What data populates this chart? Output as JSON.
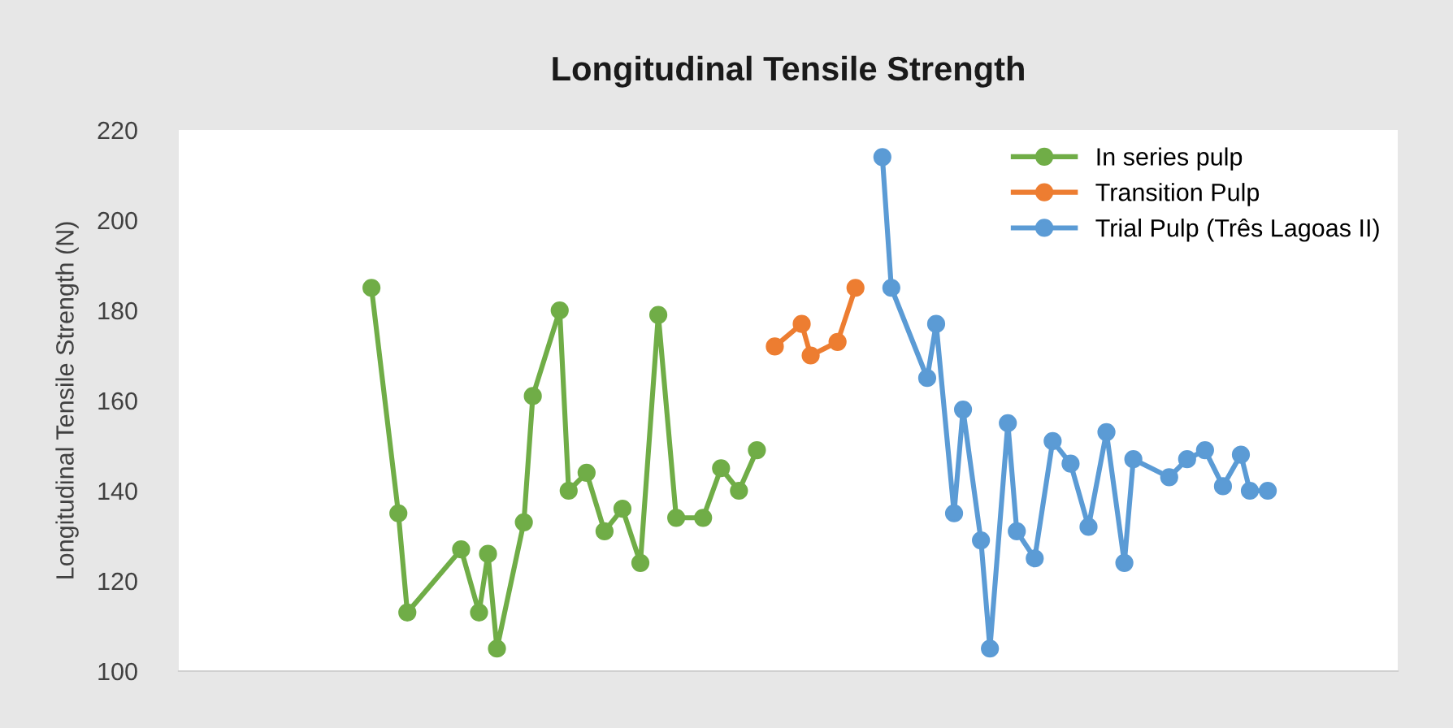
{
  "chart_data": {
    "type": "line",
    "title": "Longitudinal Tensile Strength",
    "ylabel": "Longitudinal Tensile Strength (N)",
    "categories": [
      null,
      null,
      null,
      null,
      null,
      null,
      null,
      null,
      null,
      null,
      null,
      null,
      null,
      null,
      null,
      null,
      null,
      null,
      null,
      null,
      null,
      null,
      null,
      null,
      null,
      null,
      null,
      null,
      null,
      null,
      null,
      null,
      null,
      null,
      null,
      null,
      null,
      null,
      null,
      null,
      null,
      null,
      null,
      null,
      null,
      null,
      null,
      null,
      null,
      null,
      null,
      null,
      null,
      null,
      null,
      null,
      null,
      null,
      null,
      null,
      null,
      null,
      null,
      null,
      null,
      null,
      null,
      null,
      null,
      null,
      null,
      null,
      null,
      null,
      null,
      null,
      null,
      null,
      null,
      null,
      null,
      null,
      null,
      null,
      null,
      null,
      null,
      null,
      null,
      null,
      null,
      null,
      null,
      null,
      null,
      null,
      null,
      null,
      null,
      null,
      null,
      null,
      null,
      null,
      null,
      null,
      null,
      null,
      null,
      null,
      null,
      null,
      null,
      null,
      null,
      null,
      null,
      null,
      null,
      null,
      null,
      null,
      null,
      null,
      null,
      null,
      null,
      null,
      null,
      null,
      null,
      null,
      null,
      null,
      null,
      null
    ],
    "series": [
      {
        "name": "In series pulp",
        "color": "#70ad47",
        "values": [
          null,
          null,
          null,
          null,
          null,
          null,
          null,
          null,
          null,
          null,
          null,
          null,
          null,
          null,
          null,
          null,
          null,
          null,
          null,
          null,
          null,
          185,
          null,
          null,
          135,
          113,
          null,
          null,
          null,
          null,
          null,
          127,
          null,
          113,
          126,
          105,
          null,
          null,
          133,
          161,
          null,
          null,
          180,
          140,
          null,
          144,
          null,
          131,
          null,
          136,
          null,
          124,
          null,
          179,
          null,
          134,
          null,
          null,
          134,
          null,
          145,
          null,
          140,
          null,
          149,
          null,
          null,
          null,
          null,
          null,
          null,
          null,
          null,
          null,
          null,
          null,
          null,
          null,
          null,
          null,
          null,
          null,
          null,
          null,
          null,
          null,
          null,
          null,
          null,
          null,
          null,
          null,
          null,
          null,
          null,
          null,
          null,
          null,
          null,
          null,
          null,
          null,
          null,
          null,
          null,
          null,
          null,
          null,
          null,
          null,
          null,
          null,
          null,
          null,
          null,
          null,
          null,
          null,
          null,
          null,
          null,
          null,
          null,
          null,
          null,
          null,
          null,
          null,
          null,
          null,
          null,
          null,
          null,
          null,
          null,
          null
        ]
      },
      {
        "name": "Transition Pulp",
        "color": "#ed7d31",
        "values": [
          null,
          null,
          null,
          null,
          null,
          null,
          null,
          null,
          null,
          null,
          null,
          null,
          null,
          null,
          null,
          null,
          null,
          null,
          null,
          null,
          null,
          null,
          null,
          null,
          null,
          null,
          null,
          null,
          null,
          null,
          null,
          null,
          null,
          null,
          null,
          null,
          null,
          null,
          null,
          null,
          null,
          null,
          null,
          null,
          null,
          null,
          null,
          null,
          null,
          null,
          null,
          null,
          null,
          null,
          null,
          null,
          null,
          null,
          null,
          null,
          null,
          null,
          null,
          null,
          null,
          null,
          172,
          null,
          null,
          177,
          170,
          null,
          null,
          173,
          null,
          185,
          null,
          null,
          null,
          null,
          null,
          null,
          null,
          null,
          null,
          null,
          null,
          null,
          null,
          null,
          null,
          null,
          null,
          null,
          null,
          null,
          null,
          null,
          null,
          null,
          null,
          null,
          null,
          null,
          null,
          null,
          null,
          null,
          null,
          null,
          null,
          null,
          null,
          null,
          null,
          null,
          null,
          null,
          null,
          null,
          null,
          null,
          null,
          null,
          null,
          null,
          null,
          null,
          null,
          null,
          null,
          null,
          null,
          null,
          null,
          null
        ]
      },
      {
        "name": "Trial Pulp (Três Lagoas II)",
        "color": "#5b9bd5",
        "values": [
          null,
          null,
          null,
          null,
          null,
          null,
          null,
          null,
          null,
          null,
          null,
          null,
          null,
          null,
          null,
          null,
          null,
          null,
          null,
          null,
          null,
          null,
          null,
          null,
          null,
          null,
          null,
          null,
          null,
          null,
          null,
          null,
          null,
          null,
          null,
          null,
          null,
          null,
          null,
          null,
          null,
          null,
          null,
          null,
          null,
          null,
          null,
          null,
          null,
          null,
          null,
          null,
          null,
          null,
          null,
          null,
          null,
          null,
          null,
          null,
          null,
          null,
          null,
          null,
          null,
          null,
          null,
          null,
          null,
          null,
          null,
          null,
          null,
          null,
          null,
          null,
          null,
          null,
          214,
          185,
          null,
          null,
          null,
          165,
          177,
          null,
          135,
          158,
          null,
          129,
          105,
          null,
          155,
          131,
          null,
          125,
          null,
          151,
          null,
          146,
          null,
          132,
          null,
          153,
          null,
          124,
          147,
          null,
          null,
          null,
          143,
          null,
          147,
          null,
          149,
          null,
          141,
          null,
          148,
          140,
          null,
          140,
          null,
          null,
          null,
          null,
          null,
          null,
          null,
          null,
          null,
          null,
          null,
          null,
          null,
          null
        ]
      }
    ],
    "ylim": [
      100,
      220
    ],
    "yticks": [
      100,
      120,
      140,
      160,
      180,
      200,
      220
    ],
    "grid": false,
    "legend": "top right",
    "marker": "circle",
    "line_style": "solid",
    "tick_labels": "y"
  }
}
